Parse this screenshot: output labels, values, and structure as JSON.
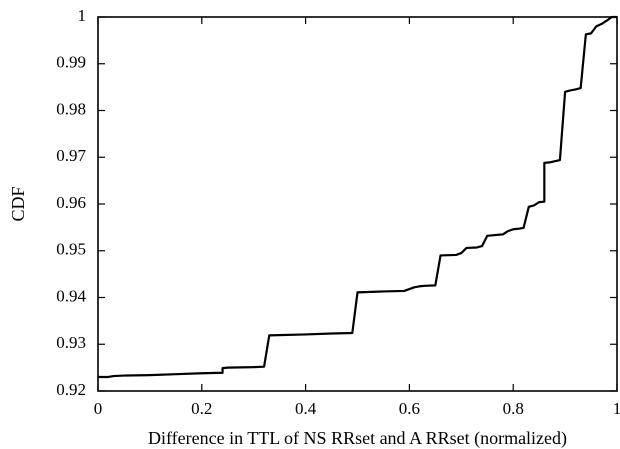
{
  "chart_data": {
    "type": "line",
    "title": "",
    "xlabel": "Difference in TTL of NS RRset and A RRset (normalized)",
    "ylabel": "CDF",
    "xlim": [
      0,
      1
    ],
    "ylim": [
      0.92,
      1
    ],
    "x_ticks": [
      0,
      0.2,
      0.4,
      0.6,
      0.8,
      1
    ],
    "x_tick_labels": [
      "0",
      "0.2",
      "0.4",
      "0.6",
      "0.8",
      "1"
    ],
    "y_ticks": [
      0.92,
      0.93,
      0.94,
      0.95,
      0.96,
      0.97,
      0.98,
      0.99,
      1
    ],
    "y_tick_labels": [
      "0.92",
      "0.93",
      "0.94",
      "0.95",
      "0.96",
      "0.97",
      "0.98",
      "0.99",
      "1"
    ],
    "grid": false,
    "series": [
      {
        "color": "#000000",
        "x": [
          0,
          0.02,
          0.03,
          0.05,
          0.1,
          0.15,
          0.2,
          0.24,
          0.24,
          0.25,
          0.3,
          0.32,
          0.33,
          0.4,
          0.45,
          0.49,
          0.5,
          0.55,
          0.59,
          0.6,
          0.61,
          0.62,
          0.63,
          0.65,
          0.66,
          0.69,
          0.7,
          0.71,
          0.73,
          0.74,
          0.75,
          0.76,
          0.78,
          0.79,
          0.8,
          0.81,
          0.82,
          0.83,
          0.84,
          0.85,
          0.86,
          0.86,
          0.87,
          0.89,
          0.9,
          0.91,
          0.92,
          0.93,
          0.94,
          0.95,
          0.96,
          0.97,
          0.98,
          0.985,
          0.99,
          1.0
        ],
        "y": [
          0.923,
          0.923,
          0.9232,
          0.9233,
          0.9234,
          0.9236,
          0.9238,
          0.9239,
          0.9249,
          0.925,
          0.9251,
          0.9252,
          0.9319,
          0.9321,
          0.9323,
          0.9324,
          0.9411,
          0.9413,
          0.9414,
          0.9418,
          0.9422,
          0.9424,
          0.9425,
          0.9426,
          0.949,
          0.9491,
          0.9495,
          0.9506,
          0.9507,
          0.951,
          0.9532,
          0.9533,
          0.9535,
          0.9542,
          0.9546,
          0.9547,
          0.9549,
          0.9594,
          0.9597,
          0.9604,
          0.9605,
          0.9688,
          0.9689,
          0.9694,
          0.984,
          0.9843,
          0.9845,
          0.9848,
          0.9963,
          0.9965,
          0.998,
          0.9985,
          0.9992,
          0.9996,
          1.0,
          1.0
        ]
      }
    ]
  }
}
